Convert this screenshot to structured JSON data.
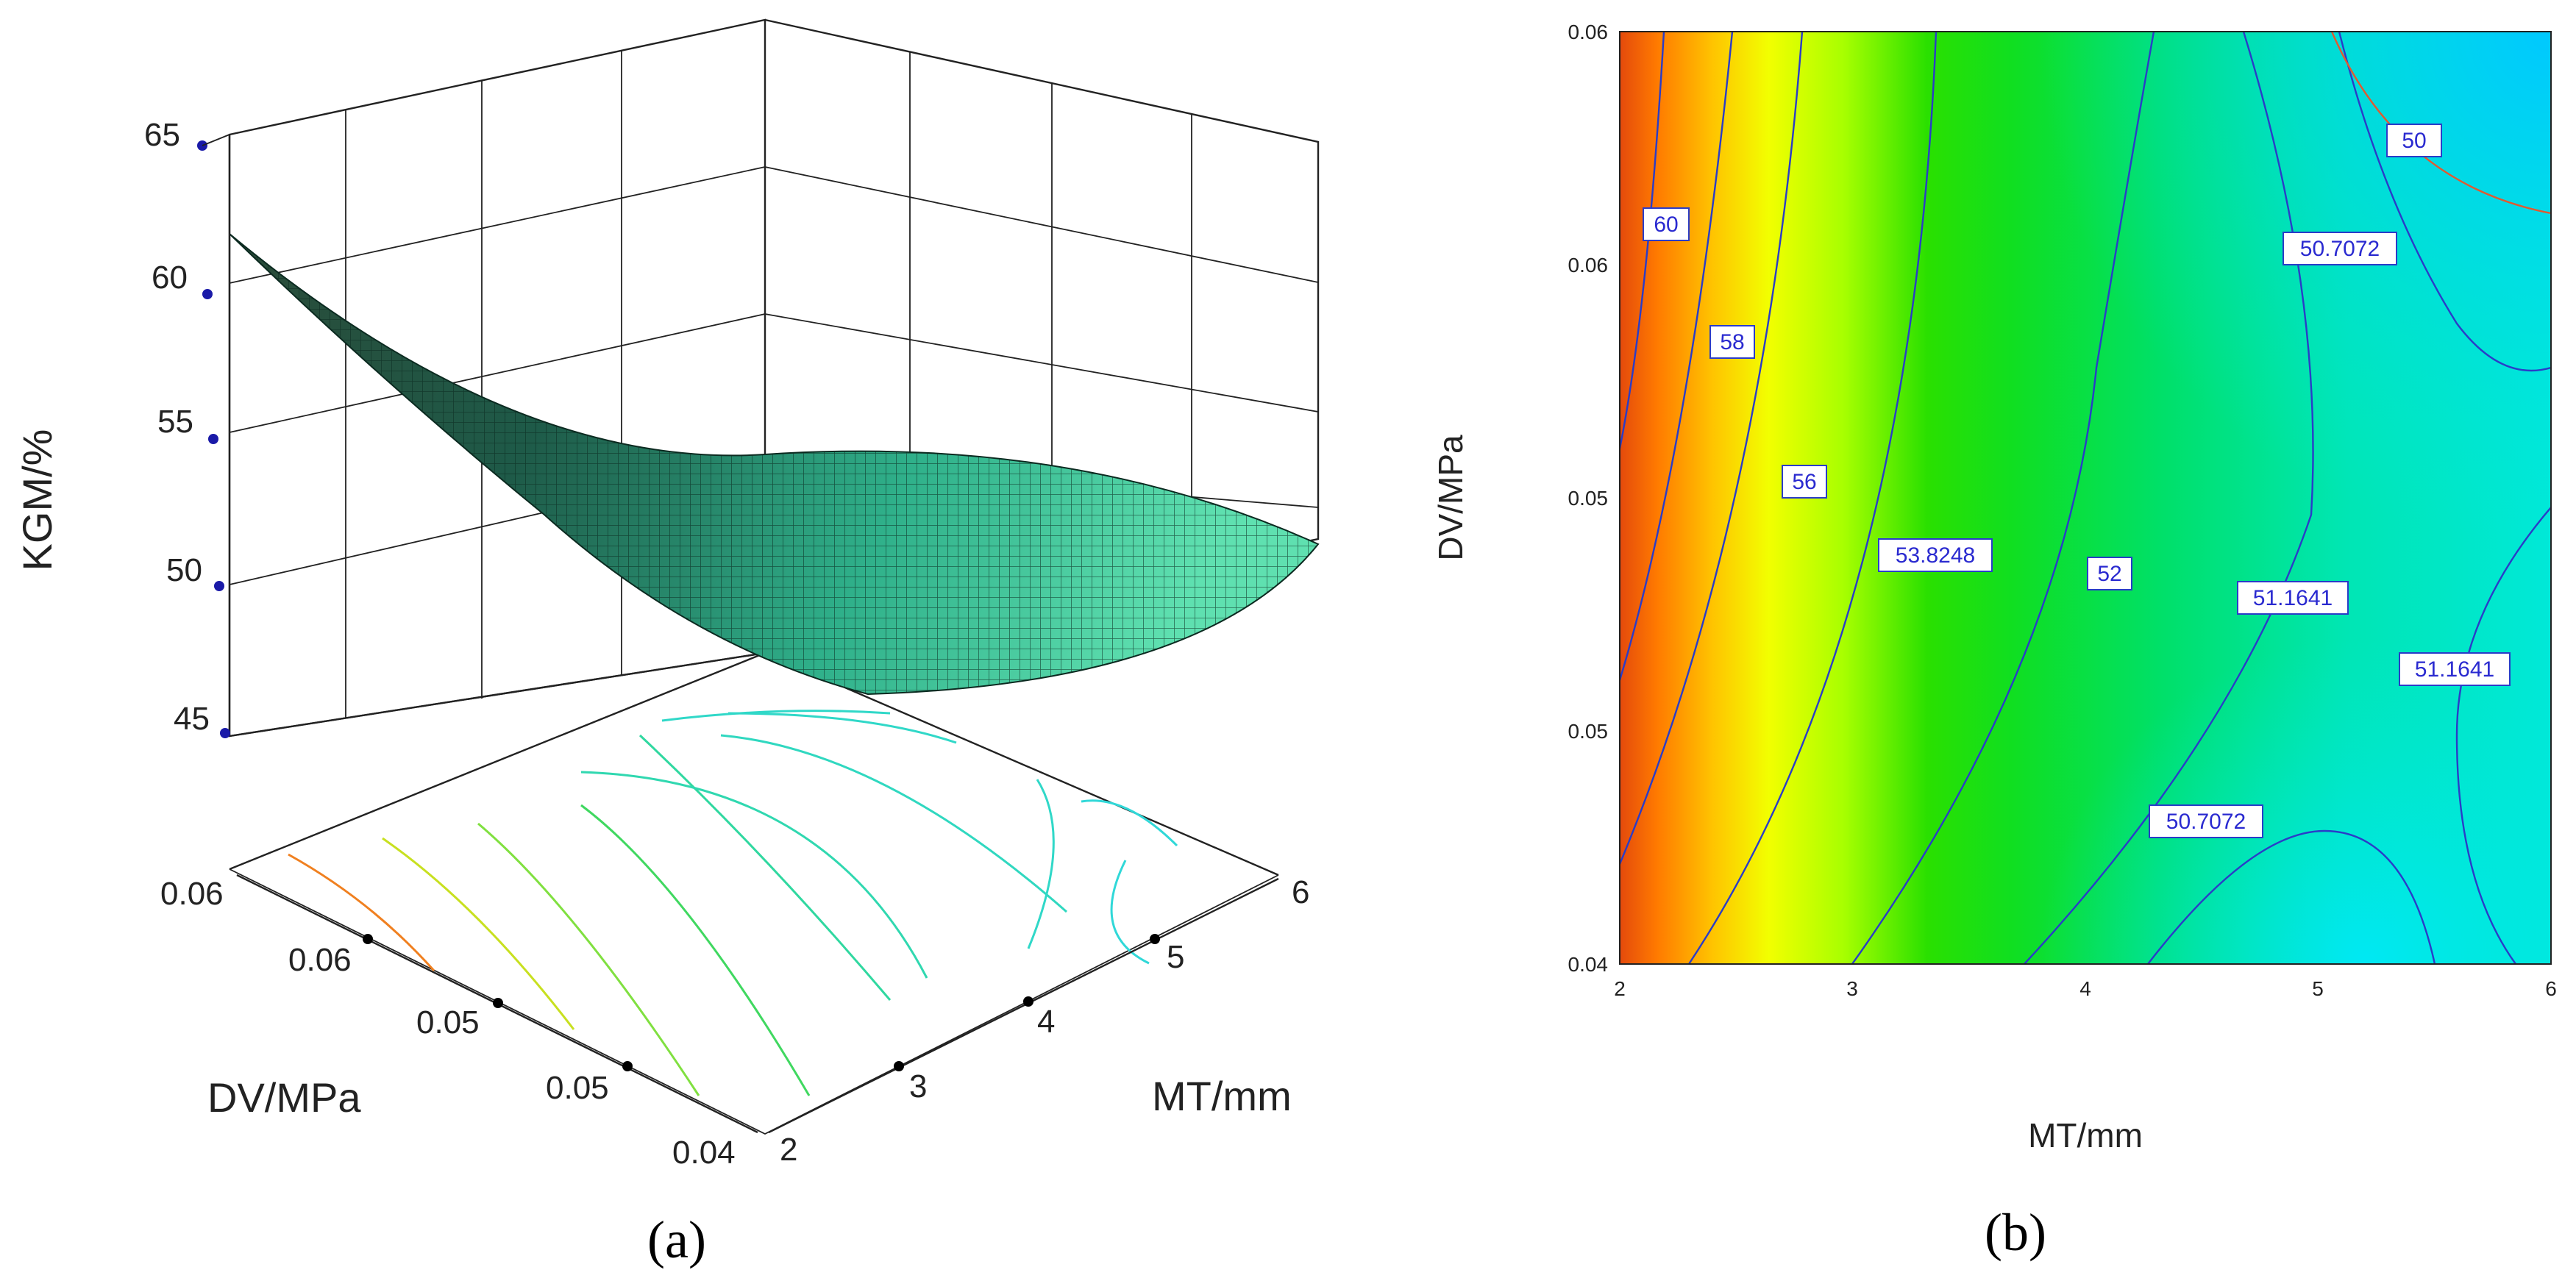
{
  "panel_labels": [
    "(a)",
    "(b)"
  ],
  "chart_data": [
    {
      "type": "surface",
      "panel": "(a)",
      "zlabel": "KGM/%",
      "xlabel": "MT/mm",
      "ylabel": "DV/MPa",
      "z_ticks": [
        "65",
        "60",
        "55",
        "50",
        "45"
      ],
      "x_ticks": [
        "2",
        "3",
        "4",
        "5",
        "6"
      ],
      "y_ticks": [
        "0.06",
        "0.06",
        "0.05",
        "0.05",
        "0.04"
      ],
      "xlim": [
        2,
        6
      ],
      "ylim": [
        0.04,
        0.06
      ],
      "zlim": [
        45,
        65
      ],
      "surface_corners": [
        {
          "MT": 2,
          "DV": 0.06,
          "KGM": 62
        },
        {
          "MT": 6,
          "DV": 0.06,
          "KGM": 51
        },
        {
          "MT": 6,
          "DV": 0.04,
          "KGM": 51
        },
        {
          "MT": 2,
          "DV": 0.04,
          "KGM": 55
        }
      ],
      "surface_color": "#3fc8a0"
    },
    {
      "type": "contour",
      "panel": "(b)",
      "xlabel": "MT/mm",
      "ylabel": "DV/MPa",
      "x_ticks": [
        "2",
        "3",
        "4",
        "5",
        "6"
      ],
      "y_ticks": [
        "0.06",
        "0.06",
        "0.05",
        "0.05",
        "0.04"
      ],
      "xlim": [
        2,
        6
      ],
      "ylim": [
        0.04,
        0.06
      ],
      "contour_levels": [
        "60",
        "58",
        "56",
        "53.8248",
        "52",
        "51.1641",
        "50.7072",
        "50"
      ],
      "contour_labels": [
        "50",
        "60",
        "50.7072",
        "58",
        "56",
        "53.8248",
        "52",
        "51.1641",
        "51.1641",
        "50.7072"
      ],
      "colormap": [
        "#00d8ff",
        "#00e8a0",
        "#00e000",
        "#ffff00",
        "#ff8000",
        "#e02000"
      ]
    }
  ]
}
